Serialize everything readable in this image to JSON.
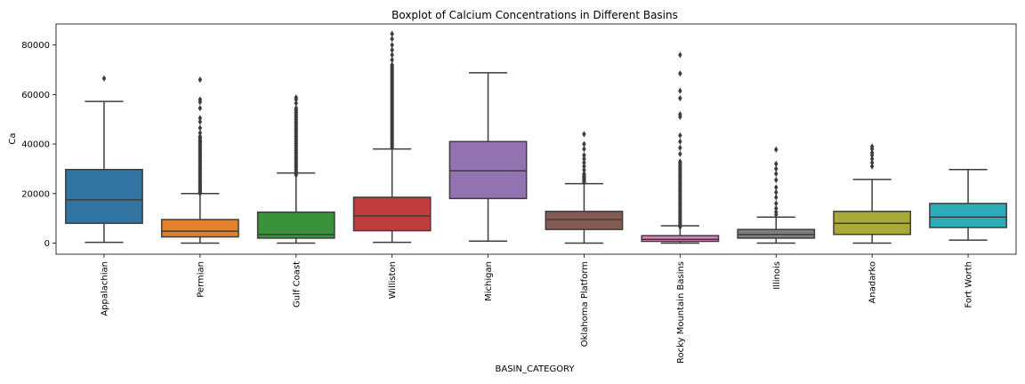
{
  "chart_data": {
    "type": "box",
    "title": "Boxplot of Calcium Concentrations in Different Basins",
    "xlabel": "BASIN_CATEGORY",
    "ylabel": "Ca",
    "ylim": [
      -4500,
      88500
    ],
    "yticks": [
      0,
      20000,
      40000,
      60000,
      80000
    ],
    "categories": [
      "Appalachian",
      "Permian",
      "Gulf Coast",
      "Williston",
      "Michigan",
      "Oklahoma Platform",
      "Rocky Mountain Basins",
      "Illinois",
      "Anadarko",
      "Fort Worth"
    ],
    "series": [
      {
        "category": "Appalachian",
        "color": "#3274a1",
        "whisker_low": 300,
        "q1": 8000,
        "median": 17500,
        "q3": 29700,
        "whisker_high": 57200,
        "outliers": [
          66500
        ],
        "dense_outliers": null
      },
      {
        "category": "Permian",
        "color": "#e1812c",
        "whisker_low": 0,
        "q1": 2500,
        "median": 4800,
        "q3": 9500,
        "whisker_high": 20000,
        "outliers": [
          20500,
          21500,
          23000,
          25000,
          27500,
          30000,
          33000,
          36000,
          39000,
          41000,
          43000,
          44500,
          46500,
          49000,
          50500,
          54500,
          57000,
          58000,
          66000
        ],
        "dense_outliers": [
          20000,
          43000
        ]
      },
      {
        "category": "Gulf Coast",
        "color": "#3a923a",
        "whisker_low": 0,
        "q1": 2000,
        "median": 3500,
        "q3": 12500,
        "whisker_high": 28300,
        "outliers": [
          56500,
          58000,
          58800
        ],
        "dense_outliers": [
          27500,
          55000
        ]
      },
      {
        "category": "Williston",
        "color": "#c03d3e",
        "whisker_low": 300,
        "q1": 5000,
        "median": 11000,
        "q3": 18500,
        "whisker_high": 38000,
        "outliers": [
          72000,
          74000,
          76000,
          78000,
          80000,
          82500,
          84500
        ],
        "dense_outliers": [
          38500,
          72000
        ]
      },
      {
        "category": "Michigan",
        "color": "#9372b2",
        "whisker_low": 800,
        "q1": 18000,
        "median": 29200,
        "q3": 41000,
        "whisker_high": 68800,
        "outliers": [],
        "dense_outliers": null
      },
      {
        "category": "Oklahoma Platform",
        "color": "#845b53",
        "whisker_low": 0,
        "q1": 5500,
        "median": 9500,
        "q3": 12800,
        "whisker_high": 24000,
        "outliers": [
          25500,
          26500,
          28000,
          29500,
          31000,
          32500,
          34000,
          35500,
          38000,
          40000,
          44000
        ],
        "dense_outliers": [
          24500,
          28500
        ]
      },
      {
        "category": "Rocky Mountain Basins",
        "color": "#d684bd",
        "whisker_low": 0,
        "q1": 700,
        "median": 1500,
        "q3": 3000,
        "whisker_high": 7000,
        "outliers": [
          36000,
          38500,
          41000,
          43500,
          51000,
          52000,
          58500,
          61500,
          68500,
          76000
        ],
        "dense_outliers": [
          6500,
          33000
        ]
      },
      {
        "category": "Illinois",
        "color": "#7f7f7f",
        "whisker_low": 0,
        "q1": 2000,
        "median": 3500,
        "q3": 5500,
        "whisker_high": 10500,
        "outliers": [
          11500,
          12500,
          14000,
          16000,
          18500,
          20500,
          22500,
          25500,
          28000,
          30000,
          32000,
          37800
        ],
        "dense_outliers": null
      },
      {
        "category": "Anadarko",
        "color": "#a9aa35",
        "whisker_low": 0,
        "q1": 3500,
        "median": 8000,
        "q3": 12800,
        "whisker_high": 25700,
        "outliers": [
          31000,
          32500,
          34000,
          35500,
          36500,
          38000,
          39000
        ],
        "dense_outliers": null
      },
      {
        "category": "Fort Worth",
        "color": "#2eabb8",
        "whisker_low": 1200,
        "q1": 6300,
        "median": 10500,
        "q3": 16000,
        "whisker_high": 29700,
        "outliers": [],
        "dense_outliers": null
      }
    ]
  }
}
